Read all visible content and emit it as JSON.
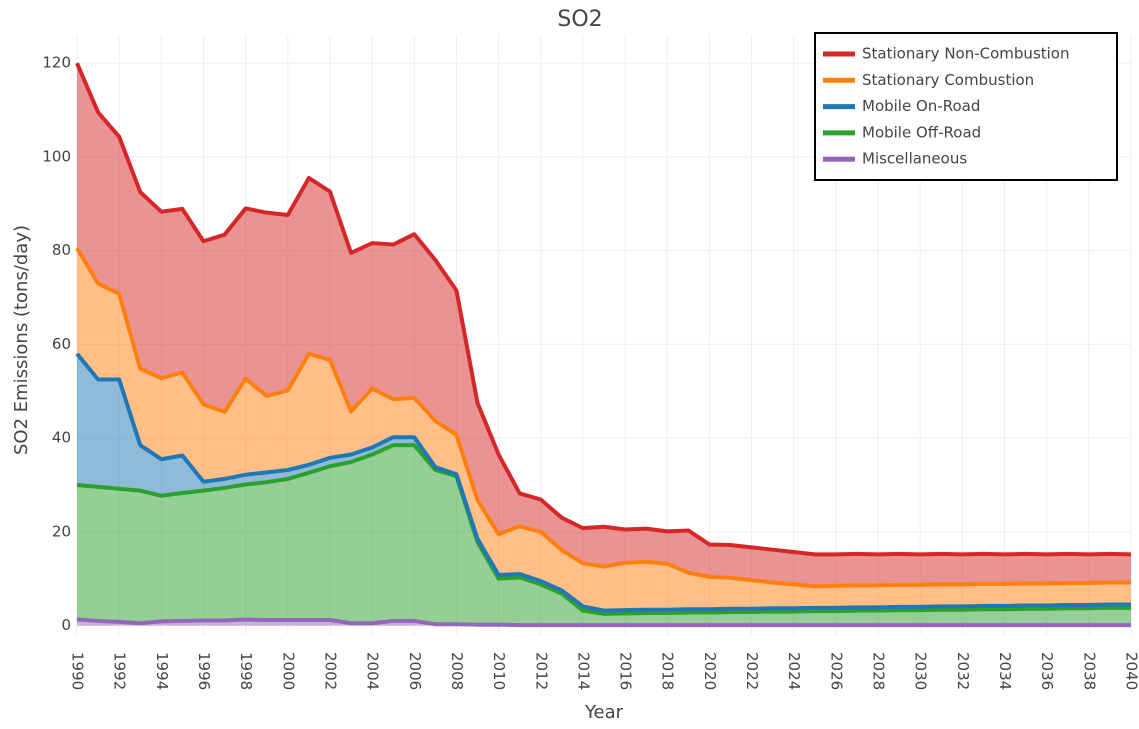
{
  "chart_data": {
    "type": "stacked-area",
    "title": "SO2",
    "x_label": "Year",
    "y_label": "SO2 Emissions (tons/day)",
    "x": [
      1990,
      1991,
      1992,
      1993,
      1994,
      1995,
      1996,
      1997,
      1998,
      1999,
      2000,
      2001,
      2002,
      2003,
      2004,
      2005,
      2006,
      2007,
      2008,
      2009,
      2010,
      2011,
      2012,
      2013,
      2014,
      2015,
      2016,
      2017,
      2018,
      2019,
      2020,
      2021,
      2022,
      2023,
      2024,
      2025,
      2026,
      2027,
      2028,
      2029,
      2030,
      2031,
      2032,
      2033,
      2034,
      2035,
      2036,
      2037,
      2038,
      2039,
      2040
    ],
    "series": [
      {
        "name": "Stationary Non-Combustion",
        "color": "#d62728",
        "values": [
          39.5,
          36.5,
          33.5,
          37.7,
          35.5,
          34.9,
          34.8,
          37.8,
          36.3,
          39.1,
          37.4,
          37.5,
          35.9,
          33.8,
          31.0,
          33.0,
          34.9,
          34.3,
          30.8,
          20.7,
          17.0,
          7.0,
          6.9,
          6.9,
          7.5,
          8.5,
          7.1,
          7.1,
          6.9,
          9.0,
          6.9,
          7.0,
          7.0,
          7.0,
          6.9,
          6.8,
          6.7,
          6.7,
          6.6,
          6.6,
          6.5,
          6.5,
          6.4,
          6.4,
          6.3,
          6.3,
          6.2,
          6.2,
          6.1,
          6.1,
          6.0
        ]
      },
      {
        "name": "Stationary Combustion",
        "color": "#ff7f0e",
        "values": [
          22.5,
          20.5,
          18.3,
          16.3,
          17.3,
          17.7,
          16.5,
          14.3,
          20.5,
          16.3,
          17.0,
          23.7,
          20.9,
          9.2,
          12.6,
          8.1,
          8.4,
          9.9,
          8.4,
          8.3,
          8.7,
          10.2,
          10.5,
          8.6,
          9.2,
          9.4,
          10.1,
          10.2,
          9.8,
          7.8,
          6.9,
          6.6,
          6.1,
          5.5,
          5.1,
          4.6,
          4.7,
          4.7,
          4.7,
          4.7,
          4.7,
          4.7,
          4.7,
          4.7,
          4.7,
          4.7,
          4.7,
          4.7,
          4.7,
          4.7,
          4.7
        ]
      },
      {
        "name": "Mobile On-Road",
        "color": "#1f77b4",
        "values": [
          28.0,
          22.9,
          23.3,
          9.7,
          7.8,
          8.0,
          1.9,
          1.9,
          2.1,
          2.1,
          1.9,
          1.7,
          1.8,
          1.6,
          1.5,
          1.7,
          1.7,
          0.6,
          0.4,
          0.7,
          0.8,
          0.7,
          0.7,
          0.7,
          0.9,
          0.7,
          0.7,
          0.7,
          0.7,
          0.7,
          0.7,
          0.7,
          0.7,
          0.7,
          0.7,
          0.7,
          0.7,
          0.7,
          0.7,
          0.7,
          0.7,
          0.7,
          0.7,
          0.7,
          0.7,
          0.7,
          0.7,
          0.7,
          0.7,
          0.7,
          0.7
        ]
      },
      {
        "name": "Mobile Off-Road",
        "color": "#2ca02c",
        "values": [
          28.7,
          28.6,
          28.4,
          28.3,
          26.8,
          27.3,
          27.7,
          28.3,
          28.8,
          29.4,
          30.1,
          31.4,
          32.8,
          34.4,
          36.0,
          37.5,
          37.5,
          32.9,
          31.6,
          17.6,
          9.8,
          10.2,
          8.7,
          6.7,
          3.1,
          2.4,
          2.5,
          2.6,
          2.6,
          2.7,
          2.7,
          2.8,
          2.8,
          2.9,
          2.9,
          3.0,
          3.0,
          3.1,
          3.1,
          3.2,
          3.2,
          3.3,
          3.3,
          3.4,
          3.4,
          3.5,
          3.5,
          3.6,
          3.6,
          3.7,
          3.7
        ]
      },
      {
        "name": "Miscellaneous",
        "color": "#9467bd",
        "values": [
          1.3,
          1.0,
          0.8,
          0.5,
          0.9,
          1.0,
          1.1,
          1.1,
          1.3,
          1.2,
          1.2,
          1.2,
          1.2,
          0.5,
          0.5,
          1.0,
          1.0,
          0.3,
          0.3,
          0.2,
          0.2,
          0.1,
          0.1,
          0.1,
          0.1,
          0.1,
          0.1,
          0.1,
          0.1,
          0.1,
          0.1,
          0.1,
          0.1,
          0.1,
          0.1,
          0.1,
          0.1,
          0.1,
          0.1,
          0.1,
          0.1,
          0.1,
          0.1,
          0.1,
          0.1,
          0.1,
          0.1,
          0.1,
          0.1,
          0.1,
          0.1
        ]
      }
    ],
    "xlim": [
      1990,
      2040
    ],
    "xticks": [
      1990,
      1992,
      1994,
      1996,
      1998,
      2000,
      2002,
      2004,
      2006,
      2008,
      2010,
      2012,
      2014,
      2016,
      2018,
      2020,
      2022,
      2024,
      2026,
      2028,
      2030,
      2032,
      2034,
      2036,
      2038,
      2040
    ],
    "ylim": [
      -2,
      126
    ],
    "yticks": [
      0,
      20,
      40,
      60,
      80,
      100,
      120
    ],
    "grid": true,
    "legend": "top-right"
  }
}
